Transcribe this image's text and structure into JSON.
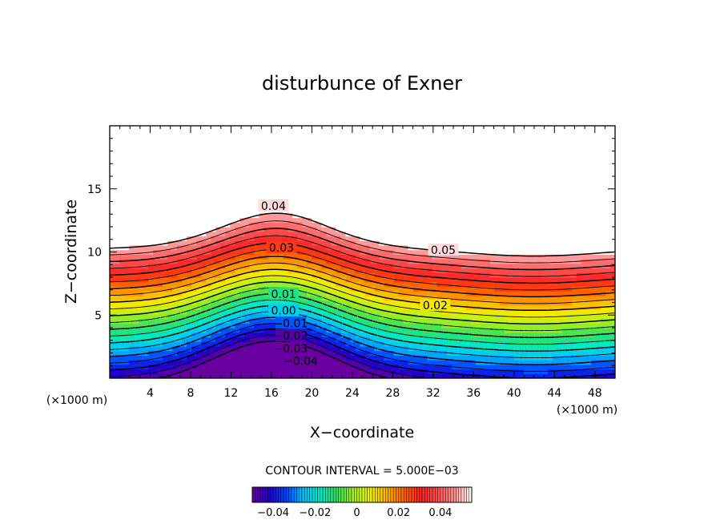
{
  "chart_data": {
    "type": "contour",
    "title": "disturbunce of Exner",
    "xlabel": "X−coordinate",
    "ylabel": "Z−coordinate",
    "x_unit_left": "(×1000 m)",
    "x_unit_right": "(×1000 m)",
    "xlim": [
      0,
      50
    ],
    "ylim": [
      0,
      20
    ],
    "x_ticks": [
      4,
      8,
      12,
      16,
      20,
      24,
      28,
      32,
      36,
      40,
      44,
      48
    ],
    "x_tick_labels": [
      "4",
      "8",
      "12",
      "16",
      "20",
      "24",
      "28",
      "32",
      "36",
      "40",
      "44",
      "48"
    ],
    "y_ticks": [
      5,
      10,
      15
    ],
    "y_tick_labels": [
      "5",
      "10",
      "15"
    ],
    "contour_interval_text": "CONTOUR INTERVAL = 5.000E−03",
    "contour_interval": 0.005,
    "field_range": [
      -0.05,
      0.055
    ],
    "contour_labels": [
      {
        "text": "0.04",
        "x": 16.2,
        "z": 13.6
      },
      {
        "text": "0.03",
        "x": 17.0,
        "z": 10.3
      },
      {
        "text": "0.05",
        "x": 33.0,
        "z": 10.1
      },
      {
        "text": "0.01",
        "x": 17.2,
        "z": 6.6
      },
      {
        "text": "0.02",
        "x": 32.2,
        "z": 5.7
      },
      {
        "text": "0.00",
        "x": 17.2,
        "z": 5.3
      },
      {
        "text": "−0.01",
        "x": 17.9,
        "z": 4.3
      },
      {
        "text": "−0.02",
        "x": 17.9,
        "z": 3.3
      },
      {
        "text": "−0.03",
        "x": 17.9,
        "z": 2.3
      },
      {
        "text": "−0.04",
        "x": 18.9,
        "z": 1.3
      }
    ],
    "colorbar": {
      "range": [
        -0.05,
        0.055
      ],
      "tick_values": [
        -0.04,
        -0.02,
        0,
        0.02,
        0.04
      ],
      "tick_labels": [
        "−0.04",
        "−0.02",
        "0",
        "0.02",
        "0.04"
      ]
    },
    "colormap": [
      "#6a00a0",
      "#2000d0",
      "#0040ff",
      "#00c0ff",
      "#00e8c8",
      "#30e060",
      "#a0f020",
      "#f0f000",
      "#ffb000",
      "#ff6000",
      "#ff2020",
      "#ff5050",
      "#ff9090",
      "#ffffff"
    ],
    "line_color": "#000000"
  }
}
